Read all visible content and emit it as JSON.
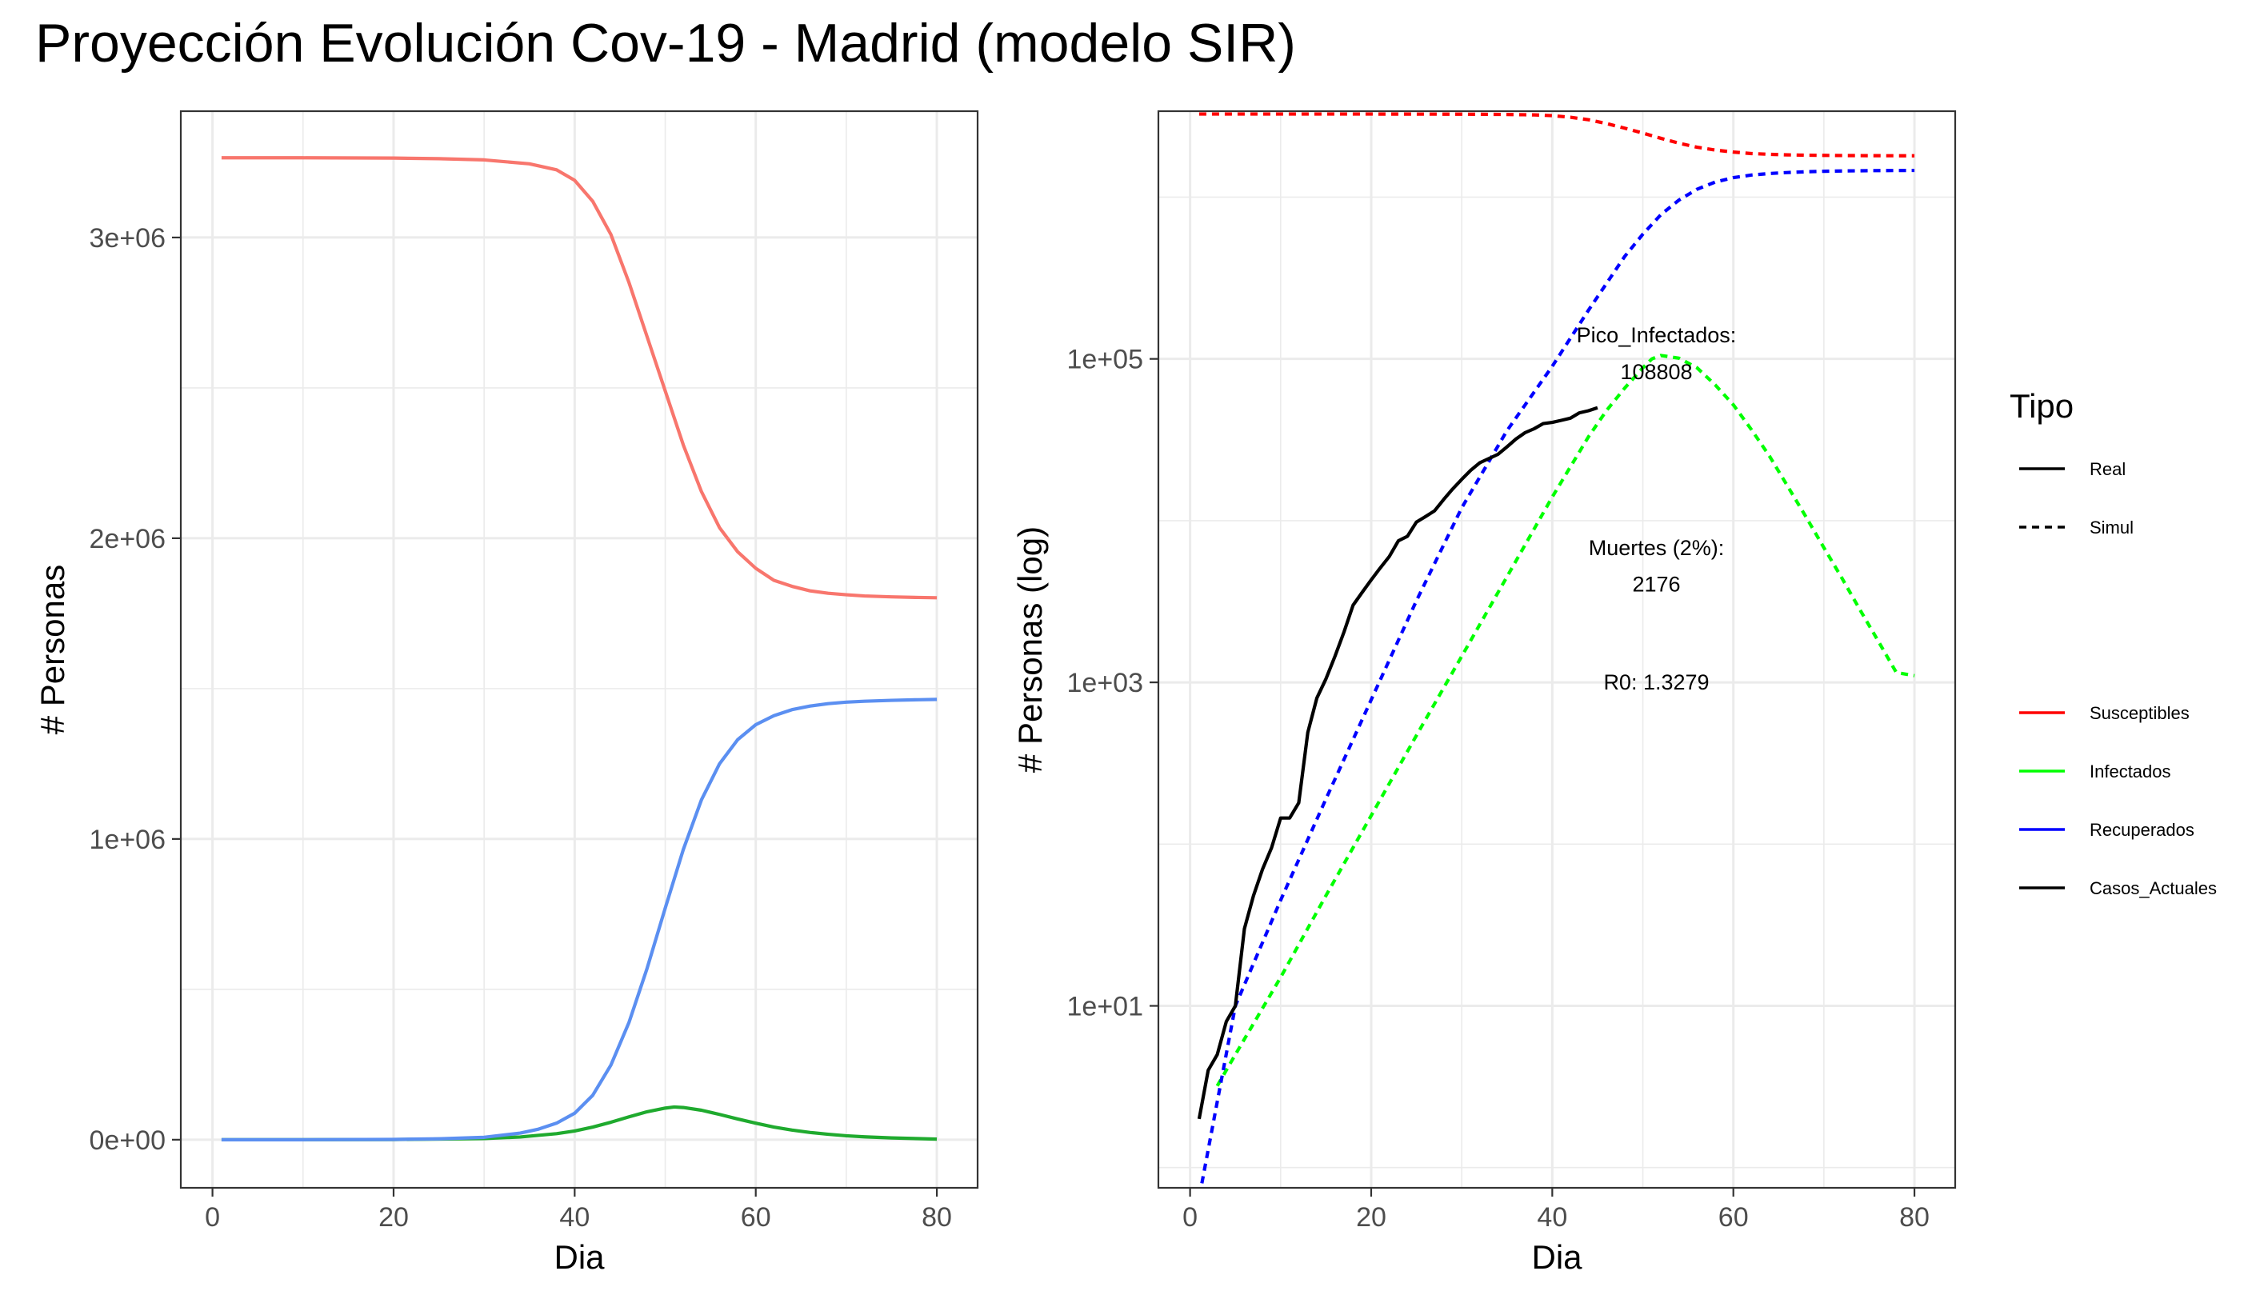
{
  "title": "Proyección Evolución Cov-19 - Madrid (modelo SIR)",
  "colors": {
    "susceptibles_linear": "#F8766D",
    "infectados_linear": "#1FAA2E",
    "recuperados_linear": "#5B8FF1",
    "susceptibles": "#FF0000",
    "infectados": "#00FF00",
    "recuperados": "#0000FF",
    "casos_actuales": "#000000"
  },
  "chart_data": [
    {
      "type": "line",
      "xlabel": "Dia",
      "ylabel": "# Personas",
      "xlim": [
        -3.5,
        84.5
      ],
      "ylim": [
        -160000,
        3420000
      ],
      "x_ticks": [
        0,
        20,
        40,
        60,
        80
      ],
      "x_tick_labels": [
        "0",
        "20",
        "40",
        "60",
        "80"
      ],
      "y_ticks": [
        0,
        1000000,
        2000000,
        3000000
      ],
      "y_tick_labels": [
        "0e+00",
        "1e+06",
        "2e+06",
        "3e+06"
      ],
      "grid": true,
      "series": [
        {
          "name": "Susceptibles",
          "color_key": "susceptibles_linear",
          "x": [
            1,
            10,
            20,
            25,
            30,
            35,
            38,
            40,
            42,
            44,
            46,
            48,
            50,
            52,
            54,
            56,
            58,
            60,
            62,
            64,
            66,
            68,
            70,
            72,
            75,
            78,
            80
          ],
          "y": [
            3265000,
            3265000,
            3264000,
            3262000,
            3258000,
            3245000,
            3225000,
            3190000,
            3120000,
            3010000,
            2850000,
            2670000,
            2490000,
            2310000,
            2155000,
            2035000,
            1955000,
            1900000,
            1860000,
            1840000,
            1825000,
            1817000,
            1812000,
            1808000,
            1805000,
            1803000,
            1802000
          ]
        },
        {
          "name": "Infectados",
          "color_key": "infectados_linear",
          "x": [
            1,
            10,
            20,
            30,
            34,
            38,
            40,
            42,
            44,
            46,
            48,
            50,
            51,
            52,
            54,
            56,
            58,
            60,
            62,
            64,
            66,
            68,
            70,
            72,
            75,
            78,
            80
          ],
          "y": [
            0,
            0,
            500,
            4000,
            9000,
            20000,
            29000,
            42000,
            58000,
            76000,
            93000,
            105000,
            108808,
            107000,
            98000,
            84000,
            69000,
            55000,
            42000,
            32000,
            24000,
            18000,
            13000,
            9500,
            6000,
            3500,
            2000
          ],
          "annotations": []
        },
        {
          "name": "Recuperados",
          "color_key": "recuperados_linear",
          "x": [
            1,
            10,
            20,
            25,
            30,
            34,
            36,
            38,
            40,
            42,
            44,
            46,
            48,
            50,
            52,
            54,
            56,
            58,
            60,
            62,
            64,
            66,
            68,
            70,
            72,
            75,
            78,
            80
          ],
          "y": [
            0,
            0,
            1000,
            3000,
            8000,
            22000,
            35000,
            55000,
            88000,
            148000,
            248000,
            390000,
            570000,
            770000,
            965000,
            1130000,
            1250000,
            1330000,
            1380000,
            1410000,
            1430000,
            1442000,
            1450000,
            1455000,
            1458000,
            1461000,
            1463000,
            1464000
          ]
        }
      ]
    },
    {
      "type": "line",
      "scale_y": "log10",
      "xlabel": "Dia",
      "ylabel": "# Personas (log)",
      "xlim": [
        -3.5,
        84.5
      ],
      "ylim": [
        0.75,
        3400000
      ],
      "x_ticks": [
        0,
        20,
        40,
        60,
        80
      ],
      "x_tick_labels": [
        "0",
        "20",
        "40",
        "60",
        "80"
      ],
      "y_ticks": [
        10,
        1000,
        100000
      ],
      "y_tick_labels": [
        "1e+01",
        "1e+03",
        "1e+05"
      ],
      "grid": true,
      "legend": {
        "title": "Tipo",
        "linetypes": [
          {
            "label": "Real",
            "dash": "solid"
          },
          {
            "label": "Simul",
            "dash": "dashed"
          }
        ],
        "colors": [
          {
            "label": "Susceptibles",
            "color_key": "susceptibles"
          },
          {
            "label": "Infectados",
            "color_key": "infectados"
          },
          {
            "label": "Recuperados",
            "color_key": "recuperados"
          },
          {
            "label": "Casos_Actuales",
            "color_key": "casos_actuales"
          }
        ]
      },
      "annotations": [
        {
          "text": "Pico_Infectados:",
          "x": 51.5,
          "y": 140000
        },
        {
          "text": "108808",
          "x": 51.5,
          "y": 83000
        },
        {
          "text": "Muertes (2%):",
          "x": 51.5,
          "y": 6800
        },
        {
          "text": "2176",
          "x": 51.5,
          "y": 4050
        },
        {
          "text": "R0: 1.3279",
          "x": 51.5,
          "y": 1000
        }
      ],
      "series": [
        {
          "name": "Susceptibles",
          "color_key": "susceptibles",
          "dash": "dashed",
          "x": [
            1,
            10,
            20,
            30,
            35,
            38,
            40,
            42,
            44,
            46,
            48,
            50,
            52,
            54,
            56,
            58,
            60,
            62,
            64,
            66,
            68,
            70,
            72,
            75,
            78,
            80
          ],
          "y": [
            3265000,
            3265000,
            3264000,
            3258000,
            3245000,
            3225000,
            3190000,
            3120000,
            3010000,
            2850000,
            2670000,
            2490000,
            2310000,
            2155000,
            2035000,
            1955000,
            1900000,
            1860000,
            1840000,
            1825000,
            1817000,
            1812000,
            1808000,
            1805000,
            1803000,
            1802000
          ]
        },
        {
          "name": "Infectados",
          "color_key": "infectados",
          "dash": "dashed",
          "x": [
            3,
            5,
            10,
            15,
            20,
            25,
            30,
            35,
            40,
            44,
            46,
            48,
            50,
            51,
            52,
            54,
            56,
            58,
            60,
            62,
            64,
            66,
            68,
            70,
            72,
            74,
            76,
            78,
            80
          ],
          "y": [
            3.2,
            5,
            15,
            48,
            150,
            470,
            1450,
            4500,
            14000,
            33000,
            48000,
            66000,
            88000,
            100000,
            105000,
            101000,
            88000,
            69000,
            52000,
            36500,
            25000,
            16300,
            10600,
            6800,
            4400,
            2800,
            1800,
            1150,
            1100
          ]
        },
        {
          "name": "Recuperados",
          "color_key": "recuperados",
          "dash": "dashed",
          "x": [
            1.3,
            5,
            10,
            15,
            20,
            25,
            30,
            35,
            40,
            44,
            48,
            50,
            52,
            54,
            56,
            58,
            60,
            62,
            64,
            66,
            68,
            70,
            72,
            75,
            78,
            80
          ],
          "y": [
            0.8,
            10,
            45,
            190,
            780,
            3200,
            12000,
            36000,
            90000,
            200000,
            430000,
            590000,
            780000,
            960000,
            1120000,
            1240000,
            1320000,
            1370000,
            1400000,
            1420000,
            1435000,
            1445000,
            1452000,
            1458000,
            1461000,
            1463000
          ]
        },
        {
          "name": "Casos_Actuales",
          "color_key": "casos_actuales",
          "dash": "solid",
          "x": [
            1,
            2,
            3,
            4,
            5,
            6,
            7,
            8,
            9,
            10,
            11,
            12,
            13,
            14,
            15,
            16,
            17,
            18,
            19,
            20,
            21,
            22,
            23,
            24,
            25,
            26,
            27,
            28,
            29,
            30,
            31,
            32,
            33,
            34,
            35,
            36,
            37,
            38,
            39,
            40,
            41,
            42,
            43,
            44,
            45
          ],
          "y": [
            2,
            4,
            5,
            8,
            10,
            30,
            48,
            70,
            95,
            145,
            145,
            180,
            490,
            800,
            1050,
            1450,
            2050,
            3000,
            3600,
            4300,
            5100,
            6000,
            7500,
            8000,
            9800,
            10600,
            11500,
            13500,
            15700,
            18000,
            20500,
            22800,
            24200,
            25700,
            28600,
            32000,
            35000,
            37000,
            39800,
            40500,
            41700,
            43000,
            46400,
            47800,
            49900
          ]
        }
      ]
    }
  ]
}
